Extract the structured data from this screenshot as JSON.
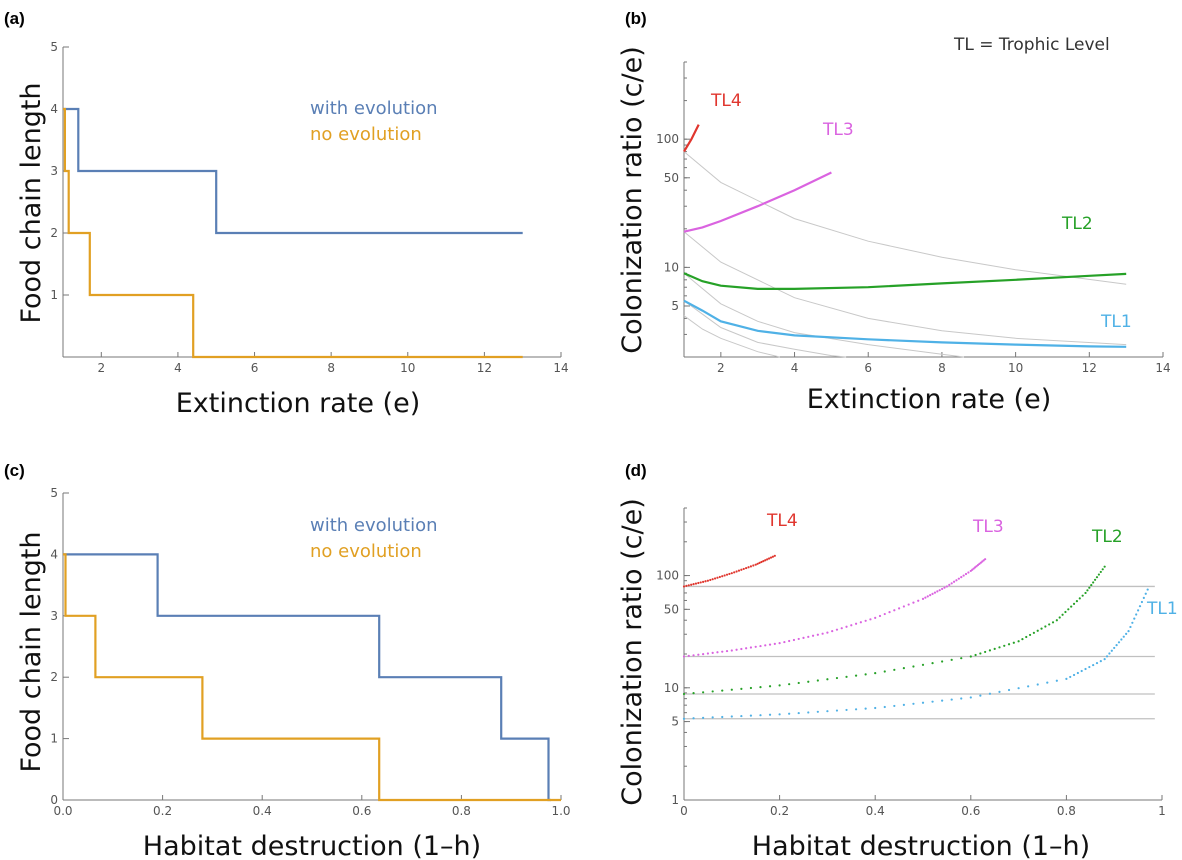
{
  "chart_data": [
    {
      "panel": "(a)",
      "type": "line",
      "step": true,
      "xlabel": "Extinction rate (e)",
      "ylabel": "Food chain length",
      "xlim": [
        1,
        14
      ],
      "ylim": [
        0,
        5
      ],
      "xticks": [
        2,
        4,
        6,
        8,
        10,
        12,
        14
      ],
      "yticks": [
        1,
        2,
        3,
        4,
        5
      ],
      "legend_position": "upper-middle",
      "series": [
        {
          "name": "with evolution",
          "color": "#5a7fb5",
          "x": [
            1,
            1.4,
            1.4,
            5,
            5,
            13
          ],
          "y": [
            4,
            4,
            3,
            3,
            2,
            2
          ]
        },
        {
          "name": "no evolution",
          "color": "#e1a023",
          "x": [
            1,
            1.05,
            1.05,
            1.15,
            1.15,
            1.7,
            1.7,
            4.4,
            4.4,
            13
          ],
          "y": [
            4,
            4,
            3,
            3,
            2,
            2,
            1,
            1,
            0,
            0
          ]
        }
      ]
    },
    {
      "panel": "(b)",
      "type": "line",
      "yscale": "log",
      "xlabel": "Extinction rate (e)",
      "ylabel": "Colonization ratio (c/e)",
      "annotation": "TL = Trophic Level",
      "xlim": [
        1,
        14
      ],
      "ylim": [
        2,
        400
      ],
      "xticks": [
        2,
        4,
        6,
        8,
        10,
        12,
        14
      ],
      "yticks": [
        5,
        10,
        50,
        100
      ],
      "series": [
        {
          "name": "TL4",
          "color": "#e0362e",
          "x": [
            1,
            1.2,
            1.4
          ],
          "y": [
            80,
            100,
            130
          ]
        },
        {
          "name": "TL3",
          "color": "#da63e0",
          "x": [
            1,
            1.5,
            2,
            3,
            4,
            5
          ],
          "y": [
            19,
            20.5,
            23,
            30,
            40,
            55
          ]
        },
        {
          "name": "TL2",
          "color": "#26a127",
          "x": [
            1,
            1.5,
            2,
            3,
            4,
            6,
            8,
            10,
            12,
            13
          ],
          "y": [
            9,
            7.8,
            7.2,
            6.8,
            6.8,
            7,
            7.5,
            8,
            8.6,
            8.9
          ]
        },
        {
          "name": "TL1",
          "color": "#4fb1e6",
          "x": [
            1,
            1.5,
            2,
            3,
            4,
            6,
            8,
            10,
            12,
            13
          ],
          "y": [
            5.5,
            4.6,
            3.8,
            3.2,
            2.95,
            2.75,
            2.6,
            2.5,
            2.42,
            2.4
          ]
        }
      ],
      "reference_lines": [
        {
          "color": "#c8c8c8",
          "x": [
            1,
            2,
            4,
            6,
            8,
            10,
            13
          ],
          "y": [
            80,
            46,
            24,
            16,
            12,
            9.6,
            7.4
          ]
        },
        {
          "color": "#c8c8c8",
          "x": [
            1,
            2,
            4,
            6,
            8,
            10,
            13
          ],
          "y": [
            19,
            11,
            5.8,
            4.0,
            3.2,
            2.8,
            2.5
          ]
        },
        {
          "color": "#c8c8c8",
          "x": [
            1,
            2,
            3,
            4,
            6,
            8,
            8.6
          ],
          "y": [
            9,
            5.2,
            3.8,
            3.1,
            2.5,
            2.1,
            2.0
          ]
        },
        {
          "color": "#c8c8c8",
          "x": [
            1,
            2,
            3,
            4,
            5,
            5.4
          ],
          "y": [
            5.5,
            3.4,
            2.6,
            2.3,
            2.05,
            2.0
          ]
        },
        {
          "color": "#c8c8c8",
          "x": [
            1,
            1.5,
            2,
            3,
            3.6
          ],
          "y": [
            4.2,
            3.3,
            2.8,
            2.2,
            2.0
          ]
        }
      ]
    },
    {
      "panel": "(c)",
      "type": "line",
      "step": true,
      "xlabel": "Habitat destruction (1–h)",
      "ylabel": "Food chain length",
      "xlim": [
        0,
        1
      ],
      "ylim": [
        0,
        5
      ],
      "xticks": [
        0.0,
        0.2,
        0.4,
        0.6,
        0.8,
        1.0
      ],
      "yticks": [
        0,
        1,
        2,
        3,
        4,
        5
      ],
      "legend_position": "upper-middle",
      "series": [
        {
          "name": "with evolution",
          "color": "#5a7fb5",
          "x": [
            0,
            0.19,
            0.19,
            0.635,
            0.635,
            0.88,
            0.88,
            0.975,
            0.975,
            0.98
          ],
          "y": [
            4,
            4,
            3,
            3,
            2,
            2,
            1,
            1,
            0,
            0
          ]
        },
        {
          "name": "no evolution",
          "color": "#e1a023",
          "x": [
            0,
            0.005,
            0.005,
            0.065,
            0.065,
            0.28,
            0.28,
            0.635,
            0.635,
            1
          ],
          "y": [
            4,
            4,
            3,
            3,
            2,
            2,
            1,
            1,
            0,
            0
          ]
        }
      ]
    },
    {
      "panel": "(d)",
      "type": "scatter",
      "yscale": "log",
      "xlabel": "Habitat destruction (1–h)",
      "ylabel": "Colonization ratio (c/e)",
      "xlim": [
        0,
        1
      ],
      "ylim": [
        1,
        400
      ],
      "xticks": [
        0.0,
        0.2,
        0.4,
        0.6,
        0.8,
        1.0
      ],
      "yticks": [
        1,
        5,
        10,
        50,
        100
      ],
      "series": [
        {
          "name": "TL4",
          "color": "#e0362e",
          "x": [
            0,
            0.05,
            0.1,
            0.15,
            0.19
          ],
          "y": [
            80,
            90,
            105,
            125,
            150
          ]
        },
        {
          "name": "TL3",
          "color": "#da63e0",
          "x": [
            0,
            0.1,
            0.2,
            0.3,
            0.4,
            0.5,
            0.55,
            0.6,
            0.63
          ],
          "y": [
            19,
            21.5,
            25,
            31,
            42,
            62,
            80,
            110,
            140
          ]
        },
        {
          "name": "TL2",
          "color": "#26a127",
          "x": [
            0,
            0.2,
            0.4,
            0.6,
            0.7,
            0.78,
            0.84,
            0.88
          ],
          "y": [
            8.8,
            10.5,
            13.5,
            19,
            26,
            40,
            70,
            120
          ]
        },
        {
          "name": "TL1",
          "color": "#4fb1e6",
          "x": [
            0,
            0.2,
            0.4,
            0.6,
            0.8,
            0.88,
            0.93,
            0.97
          ],
          "y": [
            5.3,
            5.8,
            6.6,
            8.2,
            12,
            18,
            32,
            75
          ]
        }
      ],
      "reference_lines": [
        {
          "color": "#c0c0c0",
          "y": 80
        },
        {
          "color": "#c0c0c0",
          "y": 19
        },
        {
          "color": "#c0c0c0",
          "y": 8.8
        },
        {
          "color": "#c0c0c0",
          "y": 5.3
        }
      ]
    }
  ]
}
